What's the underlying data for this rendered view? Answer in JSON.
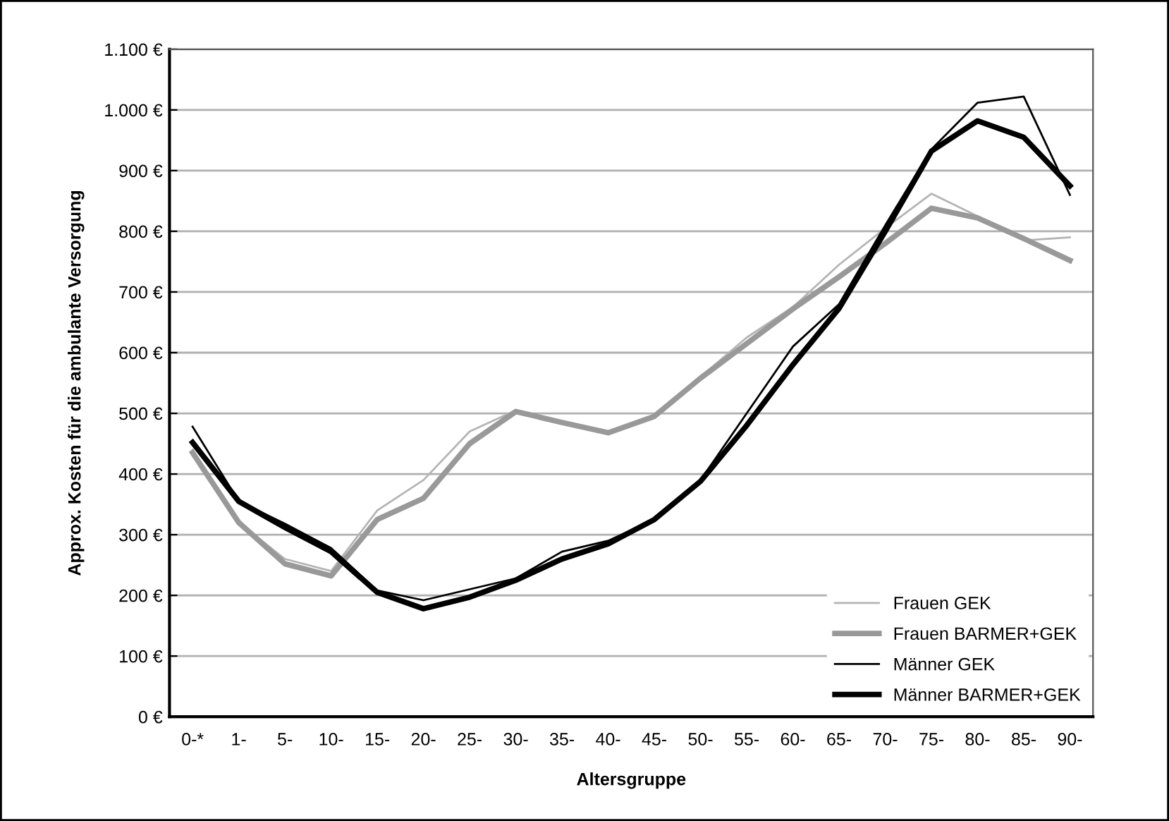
{
  "chart_data": {
    "type": "line",
    "xlabel": "Altersgruppe",
    "ylabel": "Approx. Kosten für die ambulante Versorgung",
    "categories": [
      "0-*",
      "1-",
      "5-",
      "10-",
      "15-",
      "20-",
      "25-",
      "30-",
      "35-",
      "40-",
      "45-",
      "50-",
      "55-",
      "60-",
      "65-",
      "70-",
      "75-",
      "80-",
      "85-",
      "90-"
    ],
    "series": [
      {
        "name": "Frauen GEK",
        "color": "#b4b4b4",
        "values": [
          440,
          320,
          260,
          240,
          340,
          390,
          470,
          505,
          485,
          468,
          495,
          560,
          625,
          675,
          745,
          805,
          862,
          825,
          785,
          790
        ]
      },
      {
        "name": "Frauen BARMER+GEK",
        "color": "#999999",
        "values": [
          435,
          320,
          252,
          232,
          325,
          360,
          450,
          503,
          485,
          468,
          495,
          558,
          615,
          672,
          725,
          780,
          838,
          822,
          788,
          752
        ]
      },
      {
        "name": "Männer GEK",
        "color": "#000000",
        "values": [
          478,
          355,
          318,
          278,
          208,
          192,
          210,
          228,
          272,
          290,
          325,
          390,
          500,
          610,
          680,
          810,
          935,
          1012,
          1022,
          860
        ]
      },
      {
        "name": "Männer BARMER+GEK",
        "color": "#000000",
        "values": [
          452,
          355,
          312,
          272,
          205,
          178,
          197,
          225,
          260,
          285,
          325,
          388,
          480,
          580,
          673,
          800,
          932,
          982,
          955,
          875
        ]
      }
    ],
    "ylim": [
      0,
      1100
    ],
    "yticks": [
      {
        "value": 0,
        "label": "0 €"
      },
      {
        "value": 100,
        "label": "100 €"
      },
      {
        "value": 200,
        "label": "200 €"
      },
      {
        "value": 300,
        "label": "300 €"
      },
      {
        "value": 400,
        "label": "400 €"
      },
      {
        "value": 500,
        "label": "500 €"
      },
      {
        "value": 600,
        "label": "600 €"
      },
      {
        "value": 700,
        "label": "700 €"
      },
      {
        "value": 800,
        "label": "800 €"
      },
      {
        "value": 900,
        "label": "900 €"
      },
      {
        "value": 1000,
        "label": "1.000 €"
      },
      {
        "value": 1100,
        "label": "1.100 €"
      }
    ],
    "grid": "y",
    "legend": "bottom right",
    "marker": "none",
    "line_style": "solid"
  }
}
